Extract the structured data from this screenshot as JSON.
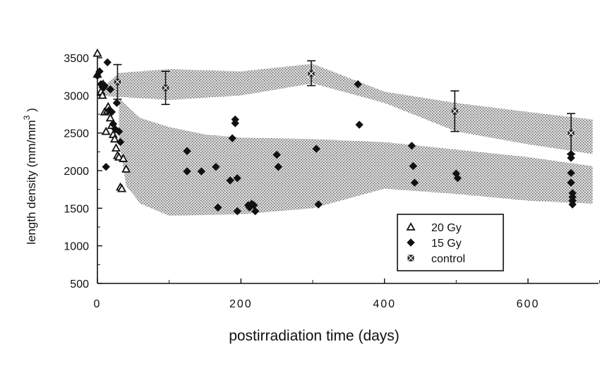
{
  "chart_data": {
    "type": "scatter",
    "xlabel": "postirradiation time (days)",
    "ylabel_main": "length density (mm/mm",
    "ylabel_sup": "3",
    "ylabel_close": " )",
    "xlim": [
      0,
      700
    ],
    "ylim": [
      500,
      3700
    ],
    "xticks": [
      0,
      200,
      400,
      600
    ],
    "xtick_labels": [
      "0",
      "200",
      "400",
      "600"
    ],
    "yticks": [
      500,
      1000,
      1500,
      2000,
      2500,
      3000,
      3500
    ],
    "ytick_labels": [
      "500",
      "1000",
      "1500",
      "2000",
      "2500",
      "3000",
      "3500"
    ],
    "legend_position": "lower-right",
    "legend": [
      {
        "marker": "triangle",
        "label": "20 Gy"
      },
      {
        "marker": "diamond",
        "label": "15 Gy"
      },
      {
        "marker": "cross-square",
        "label": "control"
      }
    ],
    "bands": [
      {
        "name": "control band",
        "upper": [
          [
            0,
            3050
          ],
          [
            30,
            3300
          ],
          [
            100,
            3350
          ],
          [
            200,
            3320
          ],
          [
            300,
            3420
          ],
          [
            400,
            3050
          ],
          [
            500,
            2900
          ],
          [
            600,
            2780
          ],
          [
            690,
            2680
          ]
        ],
        "lower": [
          [
            690,
            2220
          ],
          [
            600,
            2350
          ],
          [
            500,
            2520
          ],
          [
            400,
            2900
          ],
          [
            300,
            3160
          ],
          [
            200,
            3000
          ],
          [
            100,
            2940
          ],
          [
            30,
            2980
          ],
          [
            0,
            3000
          ]
        ]
      },
      {
        "name": "irradiated band",
        "upper": [
          [
            30,
            2960
          ],
          [
            60,
            2700
          ],
          [
            100,
            2580
          ],
          [
            150,
            2480
          ],
          [
            200,
            2440
          ],
          [
            300,
            2420
          ],
          [
            400,
            2380
          ],
          [
            500,
            2280
          ],
          [
            600,
            2180
          ],
          [
            690,
            2060
          ]
        ],
        "lower": [
          [
            690,
            1560
          ],
          [
            600,
            1600
          ],
          [
            500,
            1690
          ],
          [
            400,
            1760
          ],
          [
            300,
            1500
          ],
          [
            200,
            1420
          ],
          [
            100,
            1400
          ],
          [
            60,
            1560
          ],
          [
            40,
            1800
          ],
          [
            30,
            2400
          ]
        ]
      }
    ],
    "series": [
      {
        "name": "20 Gy",
        "marker": "triangle",
        "points": [
          [
            0,
            3560
          ],
          [
            0,
            3280
          ],
          [
            5,
            3050
          ],
          [
            7,
            3000
          ],
          [
            8,
            3150
          ],
          [
            10,
            2780
          ],
          [
            12,
            2520
          ],
          [
            14,
            2800
          ],
          [
            15,
            2850
          ],
          [
            18,
            2700
          ],
          [
            20,
            2600
          ],
          [
            22,
            2480
          ],
          [
            24,
            2420
          ],
          [
            26,
            2300
          ],
          [
            28,
            2200
          ],
          [
            30,
            2180
          ],
          [
            32,
            1780
          ],
          [
            34,
            1760
          ],
          [
            36,
            2160
          ],
          [
            40,
            2020
          ]
        ]
      },
      {
        "name": "15 Gy",
        "marker": "diamond",
        "points": [
          [
            0,
            3260
          ],
          [
            3,
            3320
          ],
          [
            5,
            3150
          ],
          [
            8,
            3100
          ],
          [
            10,
            3130
          ],
          [
            12,
            2050
          ],
          [
            14,
            3440
          ],
          [
            16,
            2800
          ],
          [
            18,
            3080
          ],
          [
            20,
            2780
          ],
          [
            22,
            2620
          ],
          [
            25,
            2550
          ],
          [
            27,
            2900
          ],
          [
            30,
            2520
          ],
          [
            32,
            2380
          ],
          [
            125,
            2260
          ],
          [
            125,
            1990
          ],
          [
            145,
            1990
          ],
          [
            165,
            2050
          ],
          [
            168,
            1510
          ],
          [
            185,
            1870
          ],
          [
            188,
            2430
          ],
          [
            192,
            2680
          ],
          [
            192,
            2630
          ],
          [
            195,
            1900
          ],
          [
            195,
            1460
          ],
          [
            210,
            1540
          ],
          [
            212,
            1510
          ],
          [
            215,
            1560
          ],
          [
            218,
            1540
          ],
          [
            220,
            1460
          ],
          [
            250,
            2210
          ],
          [
            252,
            2050
          ],
          [
            305,
            2290
          ],
          [
            308,
            1550
          ],
          [
            363,
            3150
          ],
          [
            365,
            2610
          ],
          [
            438,
            2330
          ],
          [
            440,
            2060
          ],
          [
            442,
            1840
          ],
          [
            500,
            1960
          ],
          [
            502,
            1900
          ],
          [
            660,
            2220
          ],
          [
            660,
            2170
          ],
          [
            660,
            1970
          ],
          [
            660,
            1840
          ],
          [
            662,
            1700
          ],
          [
            662,
            1650
          ],
          [
            662,
            1600
          ],
          [
            662,
            1550
          ]
        ]
      },
      {
        "name": "control",
        "marker": "cross-square",
        "points": [
          [
            28,
            3180
          ],
          [
            95,
            3100
          ],
          [
            298,
            3290
          ],
          [
            498,
            2790
          ],
          [
            660,
            2500
          ]
        ],
        "error_bars": [
          [
            28,
            2950,
            3410
          ],
          [
            95,
            2880,
            3320
          ],
          [
            298,
            3130,
            3460
          ],
          [
            498,
            2520,
            3060
          ],
          [
            660,
            2220,
            2760
          ]
        ]
      }
    ]
  }
}
